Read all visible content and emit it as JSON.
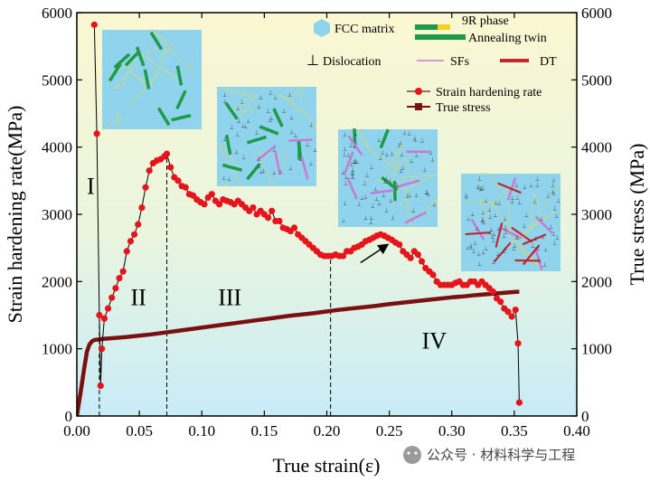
{
  "watermark": {
    "text": "公众号 · 材料科学与工程"
  },
  "colors": {
    "hardening": "#e8141b",
    "stress": "#7a1010",
    "bg_top": "#fbf7d2",
    "bg_bottom": "#ccedf7",
    "matrix": "#8fd3ec",
    "twin": "#1e9b4a",
    "sf": "#c878d6",
    "dt": "#c0282e",
    "ninr": "#f2d21e"
  },
  "legend": {
    "fcc": "FCC matrix",
    "ninr": "9R phase",
    "twin": "Annealing twin",
    "dislocation": "Dislocation",
    "sfs": "SFs",
    "dt": "DT",
    "hardening": "Strain hardening rate",
    "stress": "True stress"
  },
  "stages": {
    "s1": "I",
    "s2": "II",
    "s3": "III",
    "s4": "IV"
  },
  "chart_data": {
    "type": "line",
    "xlabel": "True strain(ε)",
    "ylabel_left": "Strain hardening rate(MPa)",
    "ylabel_right": "True stress (MPa)",
    "xlim": [
      0.0,
      0.4
    ],
    "ylim_left": [
      0,
      6000
    ],
    "ylim_right": [
      0,
      6000
    ],
    "x_ticks": [
      0.0,
      0.05,
      0.1,
      0.15,
      0.2,
      0.25,
      0.3,
      0.35,
      0.4
    ],
    "x_tick_labels": [
      "0.00",
      "0.05",
      "0.10",
      "0.15",
      "0.20",
      "0.25",
      "0.30",
      "0.35",
      "0.40"
    ],
    "y_ticks": [
      0,
      1000,
      2000,
      3000,
      4000,
      5000,
      6000
    ],
    "y_tick_labels": [
      "0",
      "1000",
      "2000",
      "3000",
      "4000",
      "5000",
      "6000"
    ],
    "stage_boundaries": [
      0.018,
      0.072,
      0.203
    ],
    "series": [
      {
        "name": "Strain hardening rate",
        "axis": "left",
        "x": [
          0.014,
          0.016,
          0.018,
          0.019,
          0.02,
          0.022,
          0.025,
          0.028,
          0.031,
          0.034,
          0.037,
          0.04,
          0.043,
          0.046,
          0.049,
          0.052,
          0.055,
          0.058,
          0.061,
          0.064,
          0.067,
          0.07,
          0.072,
          0.075,
          0.078,
          0.081,
          0.084,
          0.087,
          0.09,
          0.093,
          0.096,
          0.099,
          0.102,
          0.105,
          0.108,
          0.111,
          0.114,
          0.117,
          0.12,
          0.123,
          0.126,
          0.129,
          0.132,
          0.135,
          0.138,
          0.141,
          0.144,
          0.147,
          0.15,
          0.153,
          0.156,
          0.159,
          0.162,
          0.165,
          0.168,
          0.171,
          0.174,
          0.177,
          0.18,
          0.183,
          0.186,
          0.189,
          0.192,
          0.195,
          0.198,
          0.201,
          0.204,
          0.207,
          0.21,
          0.213,
          0.216,
          0.219,
          0.222,
          0.225,
          0.228,
          0.231,
          0.234,
          0.237,
          0.24,
          0.243,
          0.246,
          0.249,
          0.252,
          0.255,
          0.258,
          0.261,
          0.264,
          0.267,
          0.27,
          0.273,
          0.276,
          0.279,
          0.282,
          0.285,
          0.288,
          0.291,
          0.294,
          0.297,
          0.3,
          0.303,
          0.306,
          0.309,
          0.312,
          0.315,
          0.318,
          0.321,
          0.324,
          0.327,
          0.33,
          0.333,
          0.336,
          0.339,
          0.342,
          0.345,
          0.348,
          0.351,
          0.353,
          0.354
        ],
        "y": [
          5820,
          4200,
          1500,
          450,
          1000,
          1450,
          1600,
          1760,
          1900,
          2050,
          2150,
          2450,
          2600,
          2700,
          2850,
          3100,
          3400,
          3650,
          3760,
          3800,
          3820,
          3860,
          3900,
          3700,
          3550,
          3500,
          3420,
          3400,
          3300,
          3280,
          3220,
          3180,
          3150,
          3250,
          3300,
          3200,
          3150,
          3220,
          3200,
          3180,
          3150,
          3200,
          3150,
          3100,
          3050,
          3100,
          3000,
          3050,
          3000,
          2950,
          3050,
          2900,
          2900,
          2800,
          2780,
          2750,
          2800,
          2700,
          2650,
          2600,
          2550,
          2500,
          2450,
          2400,
          2380,
          2380,
          2380,
          2400,
          2380,
          2380,
          2450,
          2450,
          2500,
          2520,
          2550,
          2600,
          2620,
          2650,
          2680,
          2700,
          2680,
          2650,
          2620,
          2580,
          2550,
          2450,
          2400,
          2350,
          2450,
          2400,
          2300,
          2200,
          2150,
          2100,
          2000,
          1950,
          1950,
          1950,
          1950,
          1980,
          2000,
          1950,
          1950,
          2000,
          2000,
          1950,
          2000,
          1950,
          1900,
          1850,
          1750,
          1700,
          1600,
          1550,
          1480,
          1580,
          1080,
          200
        ],
        "markers": true
      },
      {
        "name": "True stress",
        "axis": "right",
        "x": [
          0.0,
          0.003,
          0.006,
          0.008,
          0.01,
          0.012,
          0.014,
          0.016,
          0.02,
          0.03,
          0.04,
          0.05,
          0.06,
          0.07,
          0.08,
          0.09,
          0.1,
          0.11,
          0.12,
          0.13,
          0.14,
          0.15,
          0.16,
          0.17,
          0.18,
          0.19,
          0.2,
          0.21,
          0.22,
          0.23,
          0.24,
          0.25,
          0.26,
          0.27,
          0.28,
          0.29,
          0.3,
          0.31,
          0.32,
          0.33,
          0.34,
          0.35,
          0.354
        ],
        "y": [
          0,
          350,
          720,
          950,
          1060,
          1110,
          1130,
          1135,
          1145,
          1160,
          1175,
          1195,
          1215,
          1240,
          1265,
          1290,
          1315,
          1340,
          1365,
          1390,
          1415,
          1440,
          1465,
          1490,
          1510,
          1530,
          1555,
          1580,
          1600,
          1620,
          1640,
          1665,
          1685,
          1705,
          1725,
          1745,
          1765,
          1780,
          1800,
          1815,
          1830,
          1845,
          1850
        ],
        "markers": false
      }
    ],
    "annotations": [
      {
        "text": "I",
        "x": 0.008,
        "y": 3300
      },
      {
        "text": "II",
        "x": 0.043,
        "y": 1650
      },
      {
        "text": "III",
        "x": 0.113,
        "y": 1650
      },
      {
        "text": "IV",
        "x": 0.276,
        "y": 1000
      }
    ],
    "arrow": {
      "from": [
        0.227,
        2280
      ],
      "to": [
        0.248,
        2540
      ]
    }
  }
}
